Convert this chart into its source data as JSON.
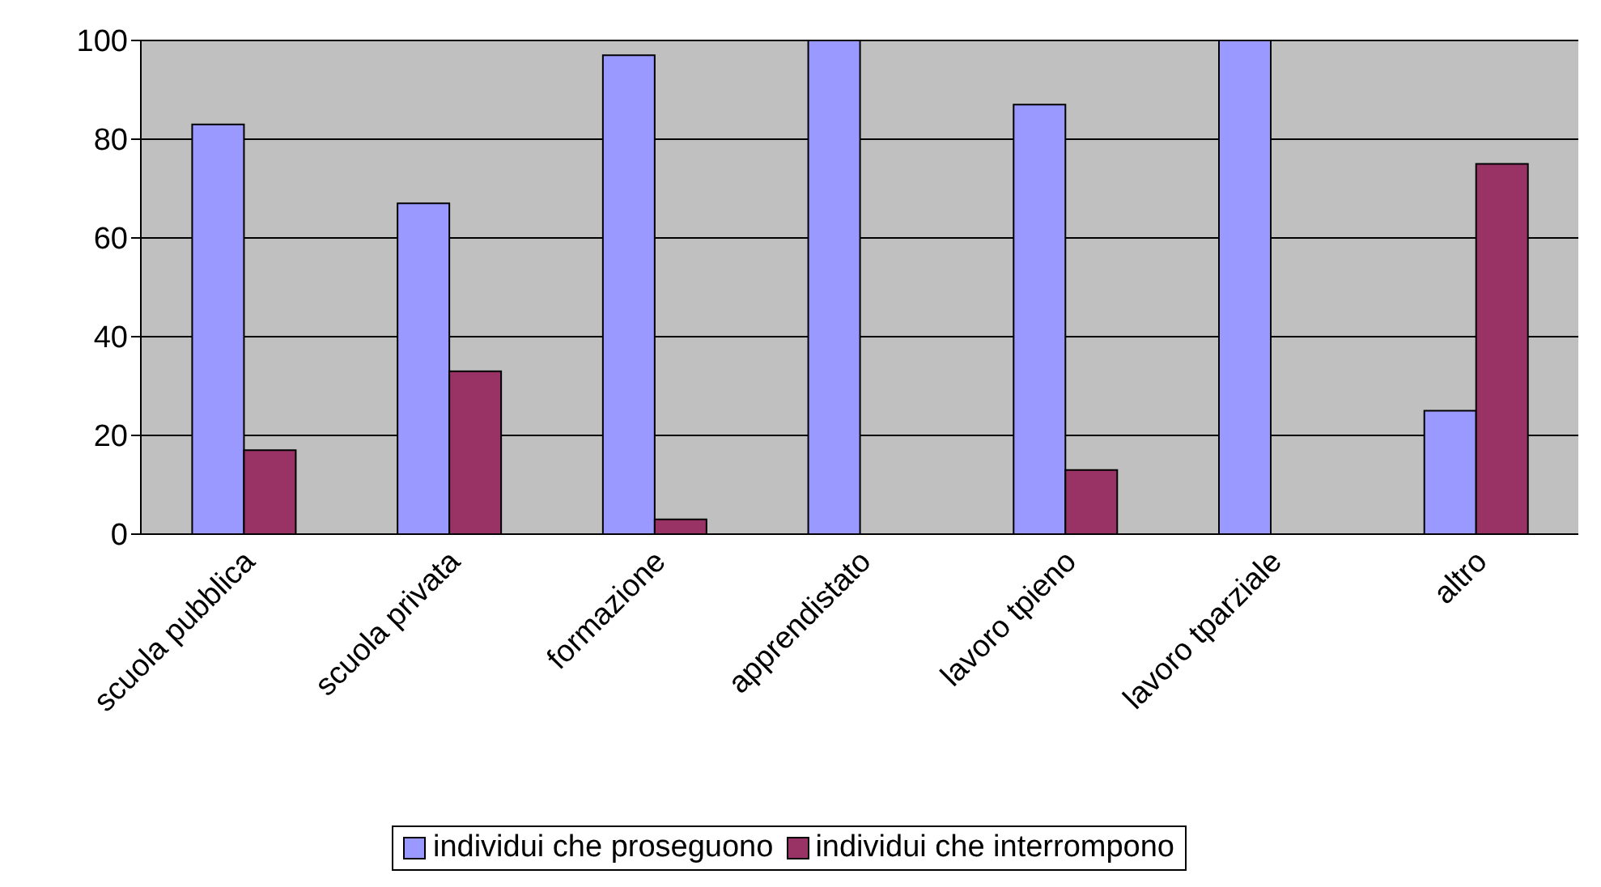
{
  "chart_data": {
    "type": "bar",
    "categories": [
      "scuola pubblica",
      "scuola privata",
      "formazione",
      "apprendistato",
      "lavoro tpieno",
      "lavoro tparziale",
      "altro"
    ],
    "series": [
      {
        "name": "individui che proseguono",
        "color": "#9999ff",
        "values": [
          83,
          67,
          97,
          100,
          87,
          100,
          25
        ]
      },
      {
        "name": "individui che interrompono",
        "color": "#993366",
        "values": [
          17,
          33,
          3,
          0,
          13,
          0,
          75
        ]
      }
    ],
    "ylim": [
      0,
      100
    ],
    "yticks": [
      0,
      20,
      40,
      60,
      80,
      100
    ],
    "grid": "y",
    "legend": "bottom"
  }
}
